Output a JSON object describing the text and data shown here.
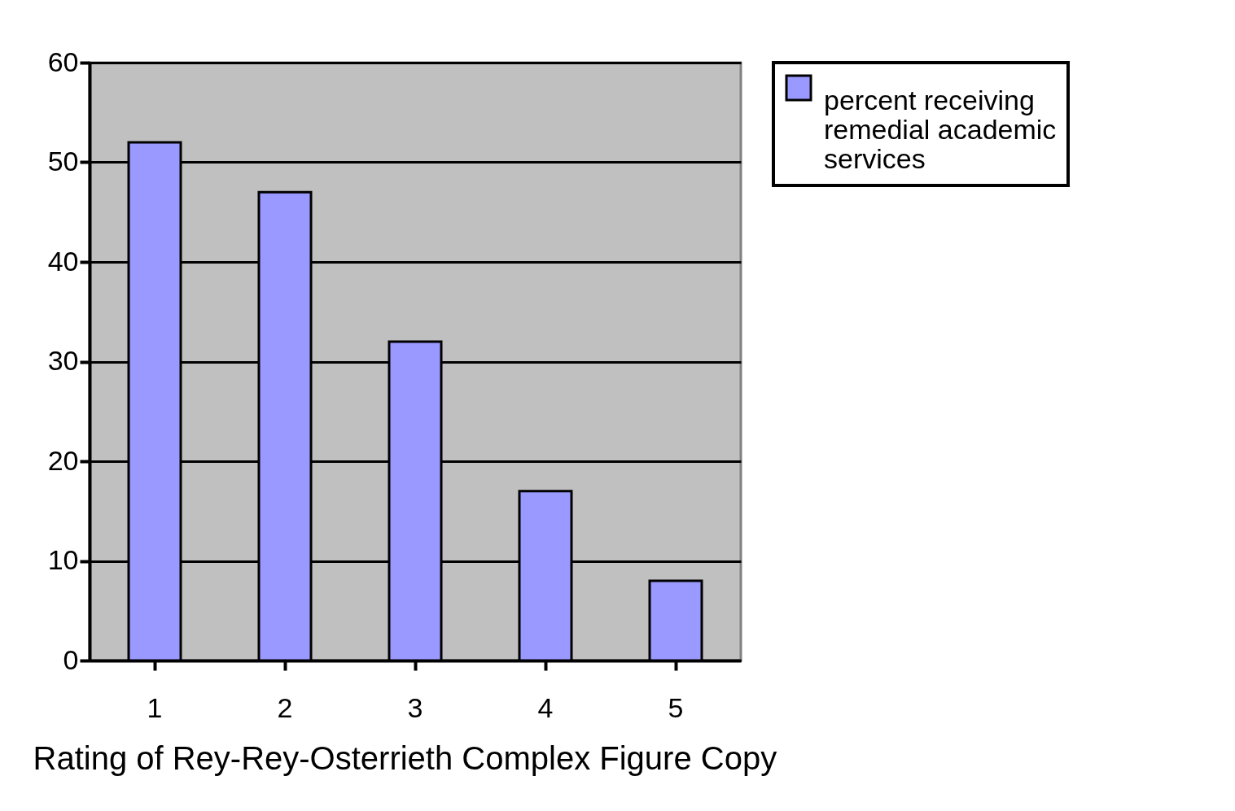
{
  "chart_data": {
    "type": "bar",
    "xlabel": "Rating of Rey-Rey-Osterrieth Complex Figure Copy",
    "categories": [
      "1",
      "2",
      "3",
      "4",
      "5"
    ],
    "series": [
      {
        "name": "percent receiving remedial academic services",
        "color": "#9999ff",
        "values": [
          52,
          47,
          32,
          17,
          8
        ]
      }
    ],
    "ylim": [
      0,
      60
    ],
    "yticks": [
      0,
      10,
      20,
      30,
      40,
      50,
      60
    ],
    "grid": "y",
    "legend": "right"
  }
}
